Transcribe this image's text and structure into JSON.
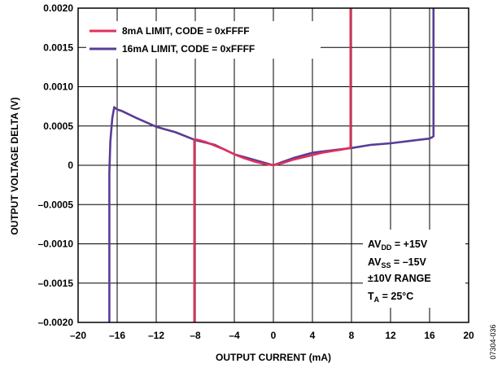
{
  "chart_data": {
    "type": "line",
    "xlabel": "OUTPUT CURRENT (mA)",
    "ylabel": "OUTPUT VOLTAGE DELTA (V)",
    "xlim": [
      -20,
      20
    ],
    "ylim": [
      -0.002,
      0.002
    ],
    "x_ticks": [
      -20,
      -16,
      -12,
      -8,
      -4,
      0,
      4,
      8,
      12,
      16,
      20
    ],
    "x_tick_labels": [
      "–20",
      "–16",
      "–12",
      "–8",
      "–4",
      "0",
      "4",
      "8",
      "12",
      "16",
      "20"
    ],
    "y_ticks": [
      -0.002,
      -0.0015,
      -0.001,
      -0.0005,
      0,
      0.0005,
      0.001,
      0.0015,
      0.002
    ],
    "y_tick_labels": [
      "–0.0020",
      "–0.0015",
      "–0.0010",
      "–0.0005",
      "0",
      "0.0005",
      "0.0010",
      "0.0015",
      "0.0020"
    ],
    "grid": true,
    "legend_position": "top-left",
    "series": [
      {
        "name": "8mA LIMIT, CODE = 0xFFFF",
        "color": "#e0305a",
        "x": [
          -8.1,
          -8.1,
          -8.0,
          -7.6,
          -7.0,
          -6.0,
          -5.0,
          -4.0,
          -3.0,
          -2.0,
          -1.0,
          0.0,
          1.0,
          2.0,
          3.0,
          4.0,
          5.0,
          6.0,
          7.0,
          7.8,
          7.9,
          7.9
        ],
        "y": [
          -0.0021,
          0.00032,
          0.00033,
          0.00032,
          0.0003,
          0.00025,
          0.0002,
          0.00014,
          9e-05,
          5e-05,
          2e-05,
          0.0,
          3e-05,
          7e-05,
          0.0001,
          0.00013,
          0.00016,
          0.00018,
          0.0002,
          0.00022,
          0.00022,
          0.0021
        ]
      },
      {
        "name": "16mA LIMIT, CODE = 0xFFFF",
        "color": "#5a3c96",
        "x": [
          -16.8,
          -16.8,
          -16.7,
          -16.5,
          -16.3,
          -16.2,
          -16.0,
          -15.5,
          -14.0,
          -12.0,
          -10.0,
          -8.0,
          -6.0,
          -4.0,
          -2.0,
          0.0,
          2.0,
          4.0,
          6.0,
          8.0,
          10.0,
          12.0,
          14.0,
          16.0,
          16.3,
          16.4,
          16.4
        ],
        "y": [
          -0.0021,
          -0.0001,
          0.0003,
          0.0006,
          0.00074,
          0.00073,
          0.00071,
          0.00069,
          0.0006,
          0.00049,
          0.00042,
          0.00032,
          0.00026,
          0.00014,
          7e-05,
          0.0,
          9e-05,
          0.00016,
          0.00019,
          0.00022,
          0.00026,
          0.00028,
          0.00031,
          0.00034,
          0.00036,
          0.00037,
          0.0021
        ]
      }
    ],
    "annotation": {
      "lines": [
        "AVDD = +15V",
        "AVSS = –15V",
        "±10V RANGE",
        "TA = 25°C"
      ],
      "line1_main": "AV",
      "line1_sub": "DD",
      "line1_rest": " = +15V",
      "line2_main": "AV",
      "line2_sub": "SS",
      "line2_rest": " = –15V",
      "line3": "±10V RANGE",
      "line4_main": "T",
      "line4_sub": "A",
      "line4_rest": " = 25°C"
    },
    "figure_id": "07304-036"
  }
}
